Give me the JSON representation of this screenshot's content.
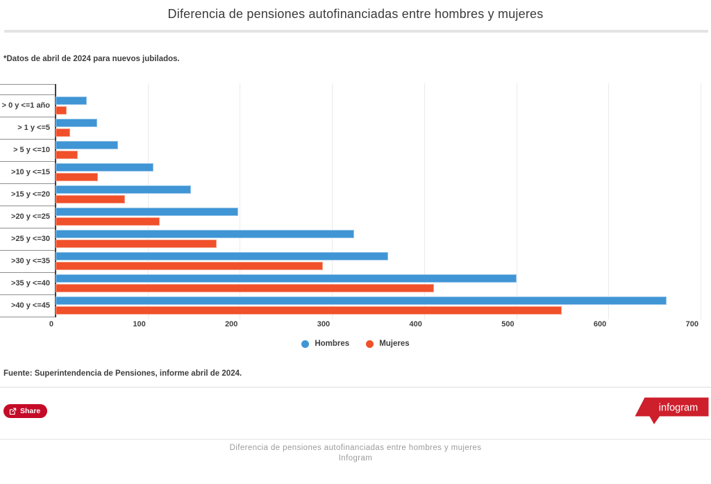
{
  "title": "Diferencia de pensiones autofinanciadas entre hombres y mujeres",
  "subtitle": "*Datos de abril de 2024 para nuevos jubilados.",
  "source": "Fuente: Superintendencia de Pensiones, informe abril de 2024.",
  "share": {
    "label": "Share"
  },
  "logo": {
    "text": "infogram",
    "color": "#cd1f2c"
  },
  "footer": {
    "caption_title": "Diferencia de pensiones autofinanciadas entre hombres y mujeres",
    "caption_brand": "Infogram"
  },
  "colors": {
    "hombres_blue": "#4095d5",
    "mujeres_orange": "#f0502a",
    "share_red": "#c40b27",
    "gridline": "#ebebeb",
    "axis": "#3f3f3f"
  },
  "chart_data": {
    "type": "bar",
    "orientation": "horizontal",
    "title": "Diferencia de pensiones autofinanciadas entre hombres y mujeres",
    "categories": [
      "> 0 y <=1 año",
      "> 1 y <=5",
      "> 5 y <=10",
      ">10 y <=15",
      ">15 y <=20",
      ">20 y <=25",
      ">25 y <=30",
      ">30 y <=35",
      ">35 y <=40",
      ">40 y <=45"
    ],
    "series": [
      {
        "name": "Hombres",
        "color": "#4095d5",
        "values": [
          34,
          45,
          68,
          106,
          147,
          198,
          324,
          361,
          500,
          663
        ]
      },
      {
        "name": "Mujeres",
        "color": "#f0502a",
        "values": [
          12,
          16,
          24,
          46,
          75,
          113,
          175,
          290,
          411,
          549
        ]
      }
    ],
    "x_ticks": [
      0,
      100,
      200,
      300,
      400,
      500,
      600,
      700
    ],
    "xlim": [
      0,
      700
    ],
    "grid": true,
    "legend_position": "bottom"
  }
}
